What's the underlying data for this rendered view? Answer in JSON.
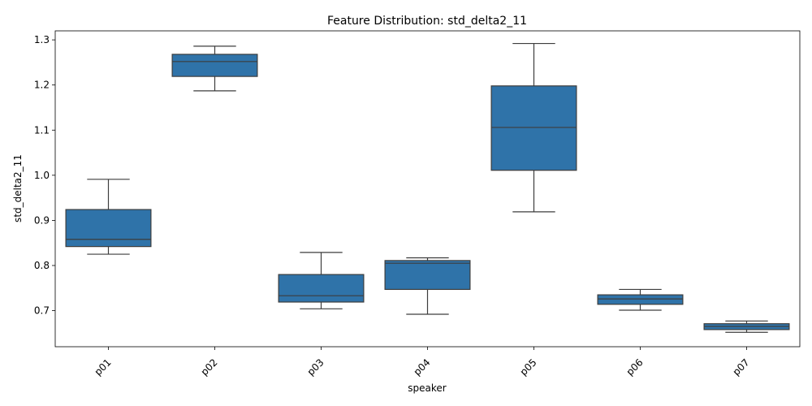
{
  "chart_data": {
    "type": "box",
    "title": "Feature Distribution: std_delta2_11",
    "xlabel": "speaker",
    "ylabel": "std_delta2_11",
    "ylim": [
      0.62,
      1.32
    ],
    "yticks": [
      "0.7",
      "0.8",
      "0.9",
      "1.0",
      "1.1",
      "1.2",
      "1.3"
    ],
    "grid": false,
    "color": "#2f73a9",
    "categories": [
      "p01",
      "p02",
      "p03",
      "p04",
      "p05",
      "p06",
      "p07"
    ],
    "boxes": [
      {
        "category": "p01",
        "whisker_low": 0.825,
        "q1": 0.842,
        "median": 0.858,
        "q3": 0.924,
        "whisker_high": 0.991
      },
      {
        "category": "p02",
        "whisker_low": 1.187,
        "q1": 1.219,
        "median": 1.252,
        "q3": 1.268,
        "whisker_high": 1.286
      },
      {
        "category": "p03",
        "whisker_low": 0.704,
        "q1": 0.719,
        "median": 0.733,
        "q3": 0.78,
        "whisker_high": 0.829
      },
      {
        "category": "p04",
        "whisker_low": 0.692,
        "q1": 0.747,
        "median": 0.805,
        "q3": 0.811,
        "whisker_high": 0.817
      },
      {
        "category": "p05",
        "whisker_low": 0.919,
        "q1": 1.011,
        "median": 1.106,
        "q3": 1.198,
        "whisker_high": 1.292
      },
      {
        "category": "p06",
        "whisker_low": 0.701,
        "q1": 0.714,
        "median": 0.726,
        "q3": 0.735,
        "whisker_high": 0.747
      },
      {
        "category": "p07",
        "whisker_low": 0.652,
        "q1": 0.658,
        "median": 0.665,
        "q3": 0.671,
        "whisker_high": 0.677
      }
    ]
  }
}
